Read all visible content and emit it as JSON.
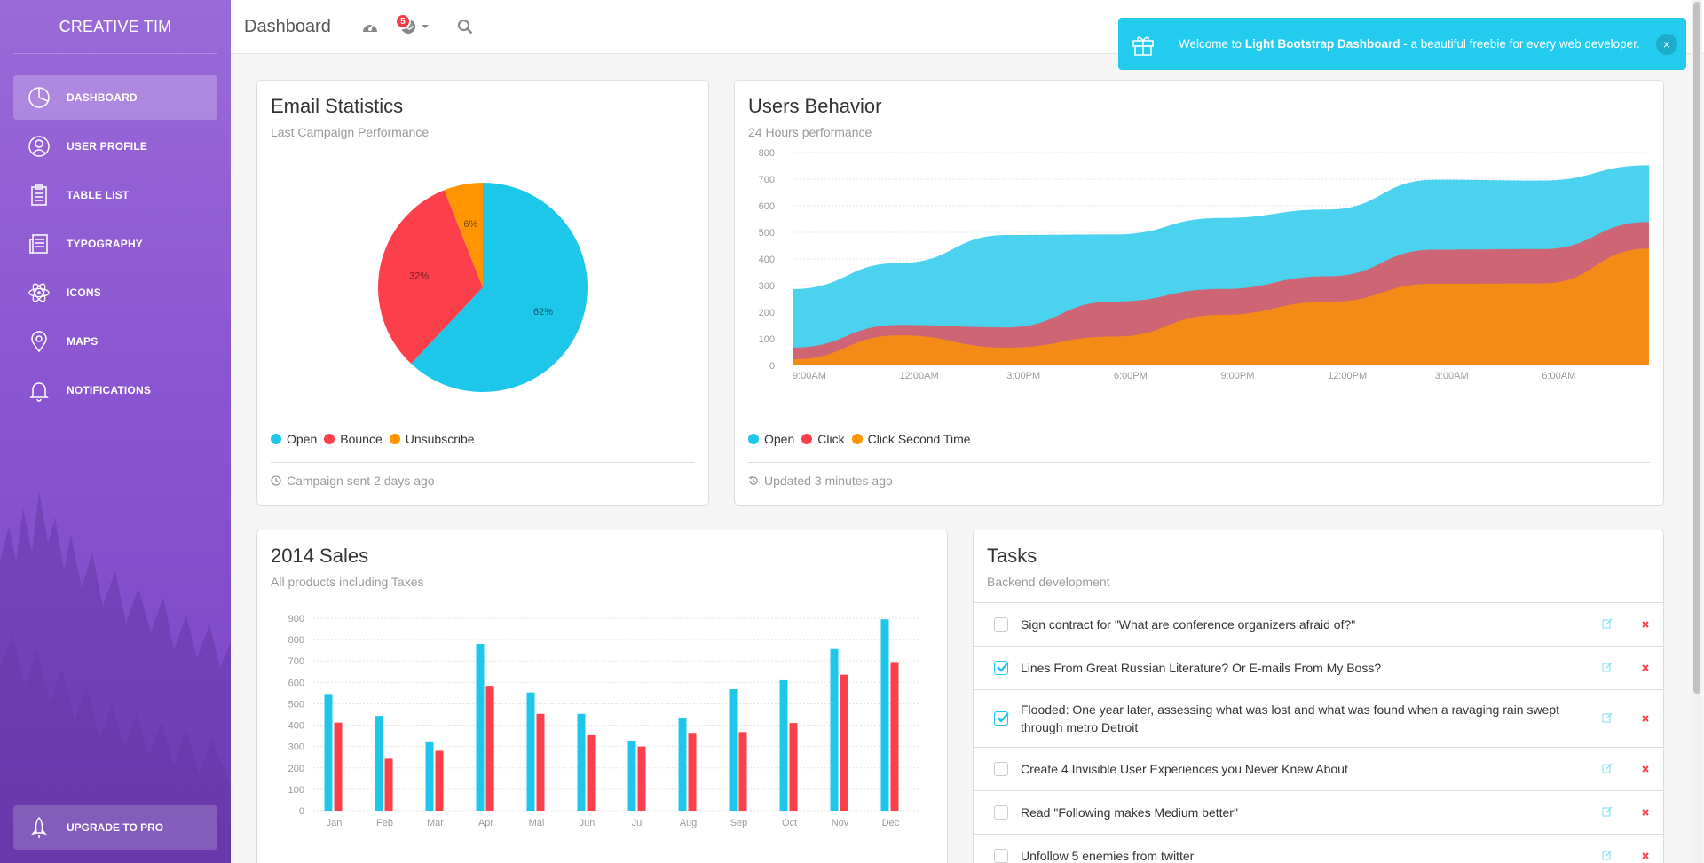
{
  "sidebar": {
    "brand": "CREATIVE TIM",
    "items": [
      {
        "label": "DASHBOARD",
        "icon": "pie-chart-icon",
        "active": true
      },
      {
        "label": "USER PROFILE",
        "icon": "user-icon",
        "active": false
      },
      {
        "label": "TABLE LIST",
        "icon": "clipboard-icon",
        "active": false
      },
      {
        "label": "TYPOGRAPHY",
        "icon": "news-paper-icon",
        "active": false
      },
      {
        "label": "ICONS",
        "icon": "atom-icon",
        "active": false
      },
      {
        "label": "MAPS",
        "icon": "map-pin-icon",
        "active": false
      },
      {
        "label": "NOTIFICATIONS",
        "icon": "bell-icon",
        "active": false
      }
    ],
    "upgrade_label": "UPGRADE TO PRO"
  },
  "topbar": {
    "title": "Dashboard",
    "notification_count": "5"
  },
  "notification": {
    "prefix": "Welcome to ",
    "bold": "Light Bootstrap Dashboard",
    "suffix": " - a beautiful freebie for every web developer.",
    "close": "×"
  },
  "email_card": {
    "title": "Email Statistics",
    "subtitle": "Last Campaign Performance",
    "legend": [
      "Open",
      "Bounce",
      "Unsubscribe"
    ],
    "footer": "Campaign sent 2 days ago"
  },
  "users_card": {
    "title": "Users Behavior",
    "subtitle": "24 Hours performance",
    "legend": [
      "Open",
      "Click",
      "Click Second Time"
    ],
    "footer": "Updated 3 minutes ago"
  },
  "sales_card": {
    "title": "2014 Sales",
    "subtitle": "All products including Taxes"
  },
  "tasks_card": {
    "title": "Tasks",
    "subtitle": "Backend development",
    "items": [
      {
        "text": "Sign contract for \"What are conference organizers afraid of?\"",
        "checked": false
      },
      {
        "text": "Lines From Great Russian Literature? Or E-mails From My Boss?",
        "checked": true
      },
      {
        "text": "Flooded: One year later, assessing what was lost and what was found when a ravaging rain swept through metro Detroit",
        "checked": true
      },
      {
        "text": "Create 4 Invisible User Experiences you Never Knew About",
        "checked": false
      },
      {
        "text": "Read \"Following makes Medium better\"",
        "checked": false
      },
      {
        "text": "Unfollow 5 enemies from twitter",
        "checked": false
      }
    ]
  },
  "colors": {
    "info": "#1dc7ea",
    "danger": "#fb404b",
    "warning": "#ff9500",
    "purple": "#9368e9"
  },
  "chart_data": [
    {
      "type": "pie",
      "title": "Email Statistics",
      "categories": [
        "Open",
        "Bounce",
        "Unsubscribe"
      ],
      "values": [
        62,
        32,
        6
      ],
      "labels": [
        "62%",
        "32%",
        "6%"
      ]
    },
    {
      "type": "area",
      "title": "Users Behavior",
      "x": [
        "9:00AM",
        "12:00AM",
        "3:00PM",
        "6:00PM",
        "9:00PM",
        "12:00PM",
        "3:00AM",
        "6:00AM",
        ""
      ],
      "y_ticks": [
        "0",
        "100",
        "200",
        "300",
        "400",
        "500",
        "600",
        "700",
        "800"
      ],
      "ylim": [
        0,
        800
      ],
      "series": [
        {
          "name": "Open",
          "values": [
            287,
            385,
            490,
            492,
            554,
            586,
            698,
            695,
            752
          ]
        },
        {
          "name": "Click",
          "values": [
            67,
            152,
            143,
            240,
            287,
            335,
            435,
            437,
            539
          ]
        },
        {
          "name": "Click Second Time",
          "values": [
            23,
            113,
            67,
            108,
            190,
            239,
            307,
            308,
            439
          ]
        }
      ]
    },
    {
      "type": "bar",
      "title": "2014 Sales",
      "categories": [
        "Jan",
        "Feb",
        "Mar",
        "Apr",
        "Mai",
        "Jun",
        "Jul",
        "Aug",
        "Sep",
        "Oct",
        "Nov",
        "Dec"
      ],
      "y_ticks": [
        "0",
        "100",
        "200",
        "300",
        "400",
        "500",
        "600",
        "700",
        "800",
        "900"
      ],
      "ylim": [
        0,
        900
      ],
      "series": [
        {
          "values": [
            542,
            443,
            320,
            780,
            553,
            453,
            326,
            434,
            568,
            610,
            756,
            895
          ]
        },
        {
          "values": [
            412,
            243,
            280,
            580,
            453,
            353,
            300,
            364,
            368,
            410,
            636,
            695
          ]
        }
      ]
    }
  ]
}
